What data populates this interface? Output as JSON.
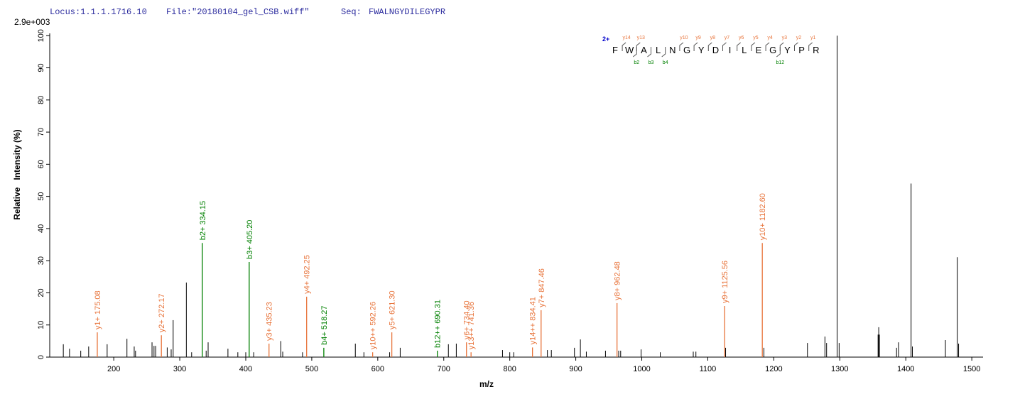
{
  "chart_data": {
    "type": "stick",
    "header": {
      "locus": "Locus:1.1.1.1716.10",
      "file": "File:\"20180104_gel_CSB.wiff\"",
      "seq_label": "Seq:",
      "seq": "FWALNGYDILEGYPR"
    },
    "y_scale_label": "2.9e+003",
    "x_label": "m/z",
    "y_label": "Relative   Intensity (%)",
    "xlim": [
      103,
      1516
    ],
    "ylim": [
      0,
      100.5
    ],
    "xticks": [
      200,
      300,
      400,
      500,
      600,
      700,
      800,
      900,
      1000,
      1100,
      1200,
      1300,
      1400,
      1500
    ],
    "yticks": [
      0,
      10,
      20,
      30,
      40,
      50,
      60,
      70,
      80,
      90,
      100
    ],
    "x": [
      123.6,
      133,
      150,
      162,
      175.08,
      190,
      220,
      231,
      233,
      258,
      261,
      263.5,
      272.17,
      281,
      287,
      290,
      310,
      318,
      334.15,
      340,
      343,
      373,
      388,
      400,
      405.2,
      412,
      435.23,
      453,
      456,
      486,
      492.25,
      518.27,
      566,
      579,
      592.26,
      618,
      621.3,
      634,
      690.31,
      707,
      719,
      734.4,
      741.36,
      789,
      800,
      806,
      834.41,
      847.46,
      857,
      863,
      898,
      907,
      916,
      945,
      962.48,
      965,
      968,
      999,
      1028,
      1078,
      1082,
      1125.56,
      1127,
      1182.6,
      1185,
      1251,
      1277.5,
      1280,
      1296,
      1299,
      1358,
      1359,
      1360,
      1386,
      1389,
      1408,
      1410,
      1460,
      1478,
      1480
    ],
    "values": [
      4,
      2.6,
      2,
      3.3,
      7.7,
      4,
      5.7,
      3.3,
      2,
      4.6,
      3.5,
      3.5,
      6.8,
      3,
      2.4,
      11.5,
      23.2,
      1.5,
      35.5,
      2,
      4.6,
      2.6,
      1.5,
      1.5,
      29.6,
      1.5,
      4.2,
      5,
      1.7,
      1.5,
      18.8,
      2.9,
      4.2,
      1.5,
      1.5,
      1.5,
      7.7,
      2.9,
      2,
      4,
      4.2,
      4.6,
      1.5,
      2.2,
      1.5,
      1.5,
      3,
      14.6,
      2.2,
      2.2,
      2.9,
      5.5,
      1.7,
      2,
      16.8,
      2,
      2,
      2.4,
      1.5,
      1.7,
      1.7,
      15.9,
      2.9,
      35.5,
      2.9,
      4.4,
      6.4,
      4.4,
      100,
      4.4,
      7,
      9.3,
      7,
      2.9,
      4.6,
      54,
      3.3,
      5.3,
      31.1,
      4.2
    ],
    "labels": [
      null,
      null,
      null,
      null,
      "y1+ 175.08",
      null,
      null,
      null,
      null,
      null,
      null,
      null,
      "y2+ 272.17",
      null,
      null,
      null,
      null,
      null,
      "b2+ 334.15",
      null,
      null,
      null,
      null,
      null,
      "b3+ 405.20",
      null,
      "y3+ 435.23",
      null,
      null,
      null,
      "y4+ 492.25",
      "b4+ 518.27",
      null,
      null,
      "y10++ 592.26",
      null,
      "y5+ 621.30",
      null,
      "b12++ 690.31",
      null,
      null,
      "y6+ 734.40",
      "y13++ 741.36",
      null,
      null,
      null,
      "y14++ 834.41",
      "y7+ 847.46",
      null,
      null,
      null,
      null,
      null,
      null,
      "y8+ 962.48",
      null,
      null,
      null,
      null,
      null,
      null,
      "y9+ 1125.56",
      null,
      "y10+ 1182.60",
      null,
      null,
      null,
      null,
      null,
      null,
      null,
      null,
      null,
      null,
      null,
      null,
      null,
      null,
      null,
      null
    ],
    "colors": [
      "#000000",
      "#000000",
      "#000000",
      "#000000",
      "#e8743b",
      "#000000",
      "#000000",
      "#000000",
      "#000000",
      "#000000",
      "#000000",
      "#000000",
      "#e8743b",
      "#000000",
      "#000000",
      "#000000",
      "#000000",
      "#000000",
      "#008000",
      "#000000",
      "#000000",
      "#000000",
      "#000000",
      "#000000",
      "#008000",
      "#000000",
      "#e8743b",
      "#000000",
      "#000000",
      "#000000",
      "#e8743b",
      "#008000",
      "#000000",
      "#000000",
      "#e8743b",
      "#000000",
      "#e8743b",
      "#000000",
      "#008000",
      "#000000",
      "#000000",
      "#e8743b",
      "#e8743b",
      "#000000",
      "#000000",
      "#000000",
      "#e8743b",
      "#e8743b",
      "#000000",
      "#000000",
      "#000000",
      "#000000",
      "#000000",
      "#000000",
      "#e8743b",
      "#000000",
      "#000000",
      "#000000",
      "#000000",
      "#000000",
      "#000000",
      "#e8743b",
      "#000000",
      "#e8743b",
      "#000000",
      "#000000",
      "#000000",
      "#000000",
      "#000000",
      "#000000",
      "#000000",
      "#000000",
      "#000000",
      "#000000",
      "#000000",
      "#000000",
      "#000000",
      "#000000",
      "#000000",
      "#000000"
    ],
    "sequence": {
      "charge": "2+",
      "residues": [
        "F",
        "W",
        "A",
        "L",
        "N",
        "G",
        "Y",
        "D",
        "I",
        "L",
        "E",
        "G",
        "Y",
        "P",
        "R"
      ],
      "y_ions": [
        "y14",
        "y13",
        null,
        null,
        "y10",
        "y9",
        "y8",
        "y7",
        "y6",
        "y5",
        "y4",
        "y3",
        "y2",
        "y1"
      ],
      "b_ions": [
        null,
        "b2",
        "b3",
        "b4",
        null,
        null,
        null,
        null,
        null,
        null,
        null,
        "b12",
        null,
        null
      ]
    }
  }
}
